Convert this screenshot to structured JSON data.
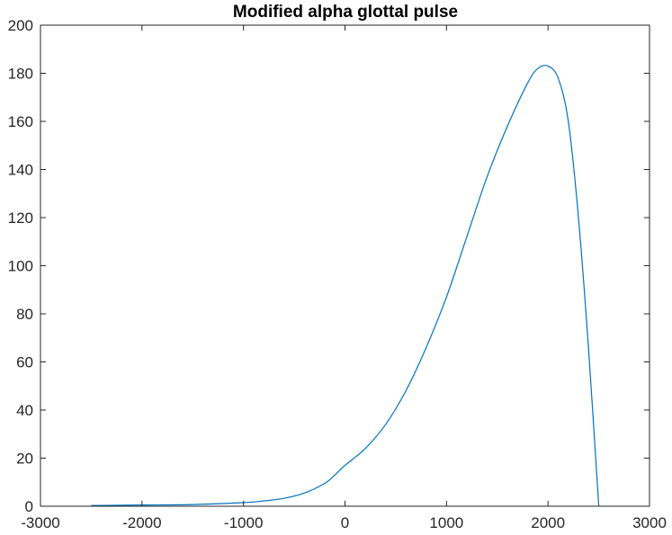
{
  "chart_data": {
    "type": "line",
    "title": "Modified alpha glottal pulse",
    "xlabel": "",
    "ylabel": "",
    "xlim": [
      -3000,
      3000
    ],
    "ylim": [
      0,
      200
    ],
    "x_ticks": [
      -3000,
      -2000,
      -1000,
      0,
      1000,
      2000,
      3000
    ],
    "y_ticks": [
      0,
      20,
      40,
      60,
      80,
      100,
      120,
      140,
      160,
      180,
      200
    ],
    "grid": false,
    "legend": "none",
    "series": [
      {
        "color": "#0072bd",
        "x": [
          -2500,
          -2000,
          -1500,
          -1000,
          -800,
          -600,
          -400,
          -200,
          -100,
          0,
          200,
          400,
          600,
          800,
          1000,
          1200,
          1400,
          1600,
          1800,
          1900,
          2000,
          2100,
          2200,
          2300,
          2400,
          2500
        ],
        "y": [
          0.3,
          0.5,
          0.7,
          1.5,
          2.2,
          3.3,
          5.5,
          9.5,
          13,
          17,
          24,
          34,
          48,
          66,
          87,
          112,
          137,
          158,
          176,
          182,
          183,
          178,
          160,
          120,
          65,
          0
        ]
      }
    ]
  }
}
